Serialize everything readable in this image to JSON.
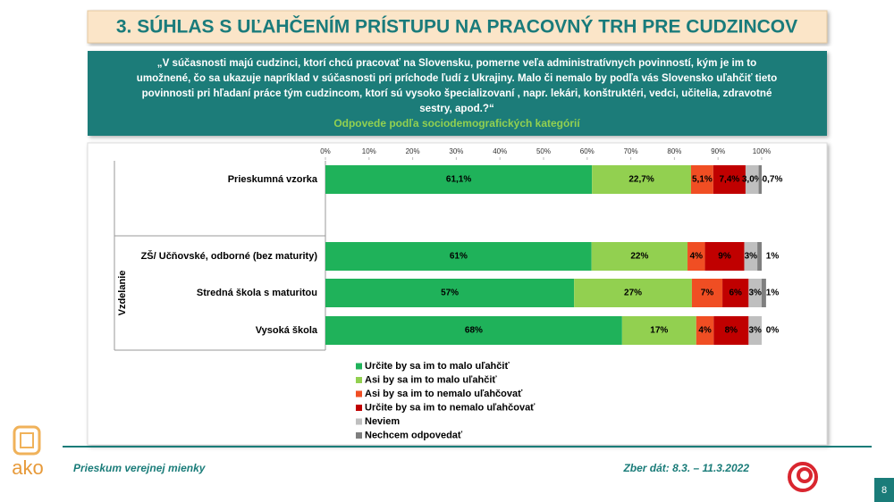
{
  "slide": {
    "title": "3. SÚHLAS S UĽAHČENÍM PRÍSTUPU NA PRACOVNÝ TRH PRE CUDZINCOV",
    "question_lines": [
      "„V súčasnosti majú cudzinci, ktorí chcú pracovať na Slovensku, pomerne veľa administratívnych povinností, kým je im to",
      "umožnené, čo sa ukazuje napríklad v súčasnosti pri príchode ľudí z Ukrajiny. Malo či nemalo by podľa vás Slovensko uľahčiť tieto",
      "povinnosti pri hľadaní práce tým cudzincom, ktorí sú vysoko špecializovaní , napr. lekári, konštruktéri, vedci, učitelia, zdravotné",
      "sestry, apod.?“"
    ],
    "subtitle": "Odpovede podľa sociodemografických kategórií",
    "footer_left": "Prieskum verejnej mienky",
    "footer_right": "Zber dát: 8.3. – 11.3.2022",
    "logo_text": "ako",
    "page_number": "8"
  },
  "chart_data": {
    "type": "stacked-bar-horizontal",
    "categories": [
      "Prieskumná vzorka",
      null,
      "ZŠ/ Učňovské, odborné (bez maturity)",
      "Stredná škola s maturitou",
      "Vysoká škola"
    ],
    "group_label": "Vzdelanie",
    "xlim": [
      0,
      100
    ],
    "xticks": [
      {
        "value": 0,
        "label": "0%"
      },
      {
        "value": 10,
        "label": "10%"
      },
      {
        "value": 20,
        "label": "20%"
      },
      {
        "value": 30,
        "label": "30%"
      },
      {
        "value": 40,
        "label": "40%"
      },
      {
        "value": 50,
        "label": "50%"
      },
      {
        "value": 60,
        "label": "60%"
      },
      {
        "value": 70,
        "label": "70%"
      },
      {
        "value": 80,
        "label": "80%"
      },
      {
        "value": 90,
        "label": "90%"
      },
      {
        "value": 100,
        "label": "100%"
      }
    ],
    "series": [
      {
        "name": "Určite by sa im to malo uľahčiť",
        "color": "#1fb25a",
        "values": [
          61.1,
          null,
          61,
          57,
          68
        ],
        "value_labels": [
          "61,1%",
          null,
          "61%",
          "57%",
          "68%"
        ]
      },
      {
        "name": "Asi by sa im to malo uľahčiť",
        "color": "#92d050",
        "values": [
          22.7,
          null,
          22,
          27,
          17
        ],
        "value_labels": [
          "22,7%",
          null,
          "22%",
          "27%",
          "17%"
        ]
      },
      {
        "name": "Asi by sa im to nemalo uľahčovať",
        "color": "#f04e23",
        "values": [
          5.1,
          null,
          4,
          7,
          4
        ],
        "value_labels": [
          "5,1%",
          null,
          "4%",
          "7%",
          "4%"
        ]
      },
      {
        "name": "Určite by sa im to nemalo uľahčovať",
        "color": "#c00000",
        "values": [
          7.4,
          null,
          9,
          6,
          8
        ],
        "value_labels": [
          "7,4%",
          null,
          "9%",
          "6%",
          "8%"
        ]
      },
      {
        "name": "Neviem",
        "color": "#bfbfbf",
        "values": [
          3.0,
          null,
          3,
          3,
          3
        ],
        "value_labels": [
          "3,0%",
          null,
          "3%",
          "3%",
          "3%"
        ]
      },
      {
        "name": "Nechcem odpovedať",
        "color": "#7f7f7f",
        "values": [
          0.7,
          null,
          1,
          1,
          0
        ],
        "value_labels": [
          "0,7%",
          null,
          "1%",
          "1%",
          "0%"
        ]
      }
    ]
  }
}
